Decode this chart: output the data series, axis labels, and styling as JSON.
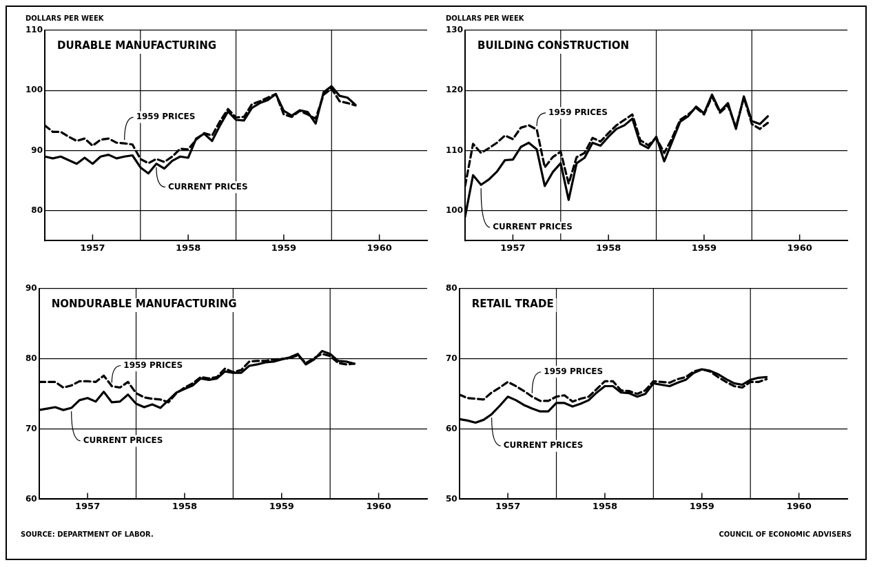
{
  "chart_data": [
    {
      "type": "line",
      "title": "DURABLE MANUFACTURING",
      "ylabel": "DOLLARS PER WEEK",
      "x": [
        "1957-01",
        "1957-02",
        "1957-03",
        "1957-04",
        "1957-05",
        "1957-06",
        "1957-07",
        "1957-08",
        "1957-09",
        "1957-10",
        "1957-11",
        "1957-12",
        "1958-01",
        "1958-02",
        "1958-03",
        "1958-04",
        "1958-05",
        "1958-06",
        "1958-07",
        "1958-08",
        "1958-09",
        "1958-10",
        "1958-11",
        "1958-12",
        "1959-01",
        "1959-02",
        "1959-03",
        "1959-04",
        "1959-05",
        "1959-06",
        "1959-07",
        "1959-08",
        "1959-09",
        "1959-10",
        "1959-11",
        "1959-12",
        "1960-01",
        "1960-02",
        "1960-03",
        "1960-04"
      ],
      "series": [
        {
          "name": "1959 PRICES",
          "color": "#000000",
          "line_style": "dashed",
          "values": [
            94.2,
            93.1,
            93.1,
            92.3,
            91.6,
            92.0,
            90.8,
            91.8,
            92.0,
            91.3,
            91.2,
            91.0,
            88.6,
            87.9,
            88.6,
            88.1,
            89.0,
            90.3,
            90.2,
            91.8,
            92.9,
            92.5,
            94.9,
            96.9,
            95.5,
            95.6,
            97.7,
            98.2,
            98.8,
            99.4,
            96.0,
            95.6,
            96.6,
            96.0,
            95.3,
            99.3,
            100.3,
            98.2,
            97.9,
            97.5
          ]
        },
        {
          "name": "CURRENT PRICES",
          "color": "#000000",
          "line_style": "solid",
          "values": [
            89.0,
            88.7,
            89.0,
            88.4,
            87.8,
            88.8,
            87.8,
            89.0,
            89.3,
            88.7,
            89.0,
            89.2,
            87.2,
            86.2,
            87.8,
            87.0,
            88.3,
            89.0,
            88.8,
            92.0,
            92.8,
            91.6,
            94.2,
            96.5,
            95.1,
            95.0,
            97.1,
            97.9,
            98.4,
            99.4,
            96.6,
            95.8,
            96.7,
            96.4,
            94.5,
            99.7,
            100.7,
            99.1,
            98.8,
            97.6
          ]
        }
      ],
      "xlim": [
        "1957-01",
        "1961-01"
      ],
      "xticks": [
        {
          "value": "1957-07",
          "label": "1957"
        },
        {
          "value": "1958-07",
          "label": "1958"
        },
        {
          "value": "1959-07",
          "label": "1959"
        },
        {
          "value": "1960-07",
          "label": "1960"
        }
      ],
      "ylim": [
        75,
        110
      ],
      "yticks": [
        80,
        90,
        100,
        110
      ],
      "grid": "y",
      "legend": false,
      "marker": "none",
      "ref_lines": [
        {
          "axis": "x",
          "value": "1958-01"
        },
        {
          "axis": "x",
          "value": "1959-01"
        },
        {
          "axis": "x",
          "value": "1960-01"
        }
      ]
    },
    {
      "type": "line",
      "title": "BUILDING CONSTRUCTION",
      "ylabel": "DOLLARS PER WEEK",
      "x": [
        "1957-01",
        "1957-02",
        "1957-03",
        "1957-04",
        "1957-05",
        "1957-06",
        "1957-07",
        "1957-08",
        "1957-09",
        "1957-10",
        "1957-11",
        "1957-12",
        "1958-01",
        "1958-02",
        "1958-03",
        "1958-04",
        "1958-05",
        "1958-06",
        "1958-07",
        "1958-08",
        "1958-09",
        "1958-10",
        "1958-11",
        "1958-12",
        "1959-01",
        "1959-02",
        "1959-03",
        "1959-04",
        "1959-05",
        "1959-06",
        "1959-07",
        "1959-08",
        "1959-09",
        "1959-10",
        "1959-11",
        "1959-12",
        "1960-01",
        "1960-02",
        "1960-03"
      ],
      "series": [
        {
          "name": "1959 PRICES",
          "color": "#000000",
          "line_style": "dashed",
          "values": [
            104.1,
            111.1,
            109.6,
            110.4,
            111.3,
            112.5,
            111.9,
            113.8,
            114.2,
            113.5,
            107.2,
            108.9,
            109.8,
            104.5,
            108.9,
            109.6,
            112.1,
            111.5,
            112.9,
            114.2,
            115.1,
            116.0,
            111.7,
            110.9,
            112.1,
            109.6,
            112.1,
            115.1,
            116.0,
            117.1,
            116.0,
            119.0,
            116.3,
            117.5,
            113.9,
            118.8,
            114.4,
            113.6,
            114.6
          ]
        },
        {
          "name": "CURRENT PRICES",
          "color": "#000000",
          "line_style": "solid",
          "values": [
            99.0,
            105.9,
            104.3,
            105.2,
            106.5,
            108.4,
            108.5,
            110.6,
            111.3,
            110.2,
            104.1,
            106.4,
            107.9,
            101.8,
            107.9,
            108.8,
            111.3,
            110.8,
            112.3,
            113.6,
            114.2,
            115.3,
            111.1,
            110.4,
            112.3,
            108.2,
            111.5,
            114.8,
            115.7,
            117.3,
            116.2,
            119.3,
            116.5,
            117.9,
            113.6,
            119.0,
            114.9,
            114.4,
            115.7
          ]
        }
      ],
      "xlim": [
        "1957-01",
        "1961-01"
      ],
      "xticks": [
        {
          "value": "1957-07",
          "label": "1957"
        },
        {
          "value": "1958-07",
          "label": "1958"
        },
        {
          "value": "1959-07",
          "label": "1959"
        },
        {
          "value": "1960-07",
          "label": "1960"
        }
      ],
      "ylim": [
        95,
        130
      ],
      "yticks": [
        100,
        110,
        120,
        130
      ],
      "grid": "y",
      "legend": false,
      "marker": "none",
      "ref_lines": [
        {
          "axis": "x",
          "value": "1958-01"
        },
        {
          "axis": "x",
          "value": "1959-01"
        },
        {
          "axis": "x",
          "value": "1960-01"
        }
      ]
    },
    {
      "type": "line",
      "title": "NONDURABLE MANUFACTURING",
      "x": [
        "1957-01",
        "1957-02",
        "1957-03",
        "1957-04",
        "1957-05",
        "1957-06",
        "1957-07",
        "1957-08",
        "1957-09",
        "1957-10",
        "1957-11",
        "1957-12",
        "1958-01",
        "1958-02",
        "1958-03",
        "1958-04",
        "1958-05",
        "1958-06",
        "1958-07",
        "1958-08",
        "1958-09",
        "1958-10",
        "1958-11",
        "1958-12",
        "1959-01",
        "1959-02",
        "1959-03",
        "1959-04",
        "1959-05",
        "1959-06",
        "1959-07",
        "1959-08",
        "1959-09",
        "1959-10",
        "1959-11",
        "1959-12",
        "1960-01",
        "1960-02",
        "1960-03",
        "1960-04"
      ],
      "series": [
        {
          "name": "1959 PRICES",
          "color": "#000000",
          "line_style": "dashed",
          "values": [
            76.7,
            76.7,
            76.7,
            75.9,
            76.2,
            76.8,
            76.8,
            76.7,
            77.6,
            76.1,
            75.9,
            76.7,
            75.1,
            74.5,
            74.3,
            74.2,
            73.8,
            75.1,
            75.9,
            76.5,
            77.4,
            77.2,
            77.4,
            78.6,
            78.1,
            78.4,
            79.6,
            79.7,
            79.7,
            79.9,
            80.0,
            80.1,
            80.5,
            79.4,
            80.1,
            80.7,
            80.4,
            79.4,
            79.2,
            79.3
          ]
        },
        {
          "name": "CURRENT PRICES",
          "color": "#000000",
          "line_style": "solid",
          "values": [
            72.7,
            72.9,
            73.1,
            72.7,
            73.0,
            74.1,
            74.4,
            73.9,
            75.3,
            73.8,
            73.9,
            74.9,
            73.6,
            73.1,
            73.5,
            73.0,
            74.1,
            75.2,
            75.7,
            76.2,
            77.2,
            77.0,
            77.2,
            78.2,
            78.0,
            78.0,
            79.0,
            79.2,
            79.5,
            79.6,
            79.9,
            80.2,
            80.7,
            79.2,
            79.9,
            81.1,
            80.7,
            79.7,
            79.6,
            79.3
          ]
        }
      ],
      "xlim": [
        "1957-01",
        "1961-01"
      ],
      "xticks": [
        {
          "value": "1957-07",
          "label": "1957"
        },
        {
          "value": "1958-07",
          "label": "1958"
        },
        {
          "value": "1959-07",
          "label": "1959"
        },
        {
          "value": "1960-07",
          "label": "1960"
        }
      ],
      "ylim": [
        60,
        90
      ],
      "yticks": [
        60,
        70,
        80,
        90
      ],
      "grid": "y",
      "legend": false,
      "marker": "none",
      "ref_lines": [
        {
          "axis": "x",
          "value": "1958-01"
        },
        {
          "axis": "x",
          "value": "1959-01"
        },
        {
          "axis": "x",
          "value": "1960-01"
        }
      ],
      "annotations": [
        "SOURCE: DEPARTMENT OF LABOR."
      ]
    },
    {
      "type": "line",
      "title": "RETAIL TRADE",
      "x": [
        "1957-01",
        "1957-02",
        "1957-03",
        "1957-04",
        "1957-05",
        "1957-06",
        "1957-07",
        "1957-08",
        "1957-09",
        "1957-10",
        "1957-11",
        "1957-12",
        "1958-01",
        "1958-02",
        "1958-03",
        "1958-04",
        "1958-05",
        "1958-06",
        "1958-07",
        "1958-08",
        "1958-09",
        "1958-10",
        "1958-11",
        "1958-12",
        "1959-01",
        "1959-02",
        "1959-03",
        "1959-04",
        "1959-05",
        "1959-06",
        "1959-07",
        "1959-08",
        "1959-09",
        "1959-10",
        "1959-11",
        "1959-12",
        "1960-01",
        "1960-02",
        "1960-03"
      ],
      "series": [
        {
          "name": "1959 PRICES",
          "color": "#000000",
          "line_style": "dashed",
          "values": [
            64.9,
            64.4,
            64.3,
            64.2,
            65.2,
            65.9,
            66.7,
            66.1,
            65.4,
            64.6,
            64.0,
            64.0,
            64.6,
            64.8,
            63.9,
            64.3,
            64.6,
            65.7,
            66.8,
            66.8,
            65.5,
            65.4,
            65.0,
            65.5,
            66.8,
            66.7,
            66.6,
            67.1,
            67.4,
            68.2,
            68.5,
            68.2,
            67.4,
            66.7,
            66.1,
            65.9,
            66.7,
            66.7,
            67.1
          ]
        },
        {
          "name": "CURRENT PRICES",
          "color": "#000000",
          "line_style": "solid",
          "values": [
            61.4,
            61.2,
            60.9,
            61.3,
            62.1,
            63.3,
            64.6,
            64.1,
            63.4,
            62.9,
            62.5,
            62.5,
            63.7,
            63.7,
            63.2,
            63.6,
            64.1,
            65.2,
            66.1,
            66.1,
            65.2,
            65.1,
            64.6,
            65.0,
            66.5,
            66.3,
            66.1,
            66.6,
            67.0,
            68.0,
            68.5,
            68.3,
            67.8,
            67.1,
            66.5,
            66.3,
            67.0,
            67.3,
            67.4
          ]
        }
      ],
      "xlim": [
        "1957-01",
        "1961-01"
      ],
      "xticks": [
        {
          "value": "1957-07",
          "label": "1957"
        },
        {
          "value": "1958-07",
          "label": "1958"
        },
        {
          "value": "1959-07",
          "label": "1959"
        },
        {
          "value": "1960-07",
          "label": "1960"
        }
      ],
      "ylim": [
        50,
        80
      ],
      "yticks": [
        50,
        60,
        70,
        80
      ],
      "grid": "y",
      "legend": false,
      "marker": "none",
      "ref_lines": [
        {
          "axis": "x",
          "value": "1958-01"
        },
        {
          "axis": "x",
          "value": "1959-01"
        },
        {
          "axis": "x",
          "value": "1960-01"
        }
      ],
      "annotations": [
        "COUNCIL OF ECONOMIC ADVISERS"
      ]
    }
  ]
}
